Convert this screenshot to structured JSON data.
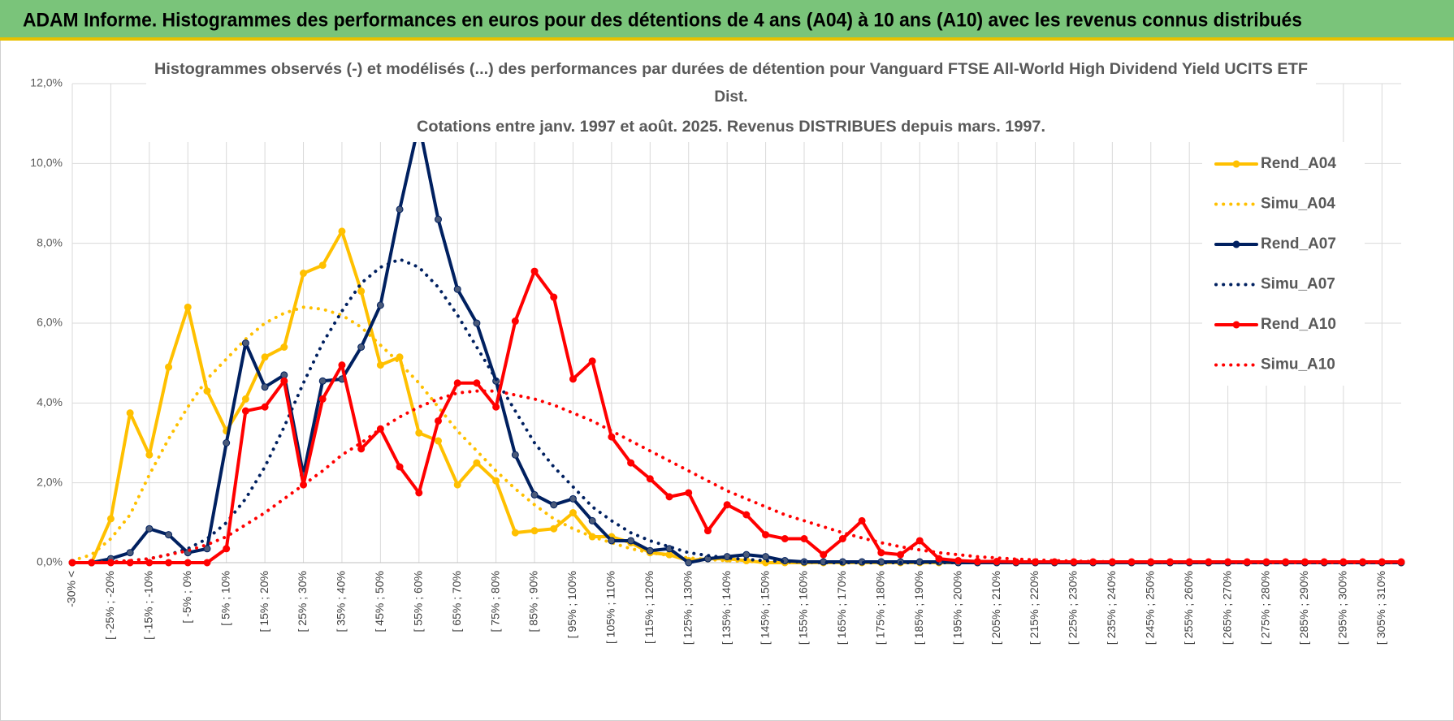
{
  "header": {
    "title": "ADAM Informe. Histogrammes des performances en euros pour des détentions de 4 ans (A04) à 10 ans (A10) avec les revenus connus distribués"
  },
  "chart_data": {
    "type": "line",
    "title": [
      "Histogrammes observés (-) et modélisés (...) des performances par durées de détention pour Vanguard FTSE All-World High Dividend Yield UCITS ETF",
      "Dist."
    ],
    "subtitle": "Cotations entre janv. 1997 et août. 2025. Revenus DISTRIBUES depuis mars. 1997.",
    "categories": [
      "-30% <",
      null,
      "[ -25% ; -20%",
      null,
      "[ -15% ; -10%",
      null,
      "[ -5% ; 0%",
      null,
      "[ 5% ; 10%",
      null,
      "[ 15% ; 20%",
      null,
      "[ 25% ; 30%",
      null,
      "[ 35% ; 40%",
      null,
      "[ 45% ; 50%",
      null,
      "[ 55% ; 60%",
      null,
      "[ 65% ; 70%",
      null,
      "[ 75% ; 80%",
      null,
      "[ 85% ; 90%",
      null,
      "[ 95% ; 100%",
      null,
      "[ 105% ; 110%",
      null,
      "[ 115% ; 120%",
      null,
      "[ 125% ; 130%",
      null,
      "[ 135% ; 140%",
      null,
      "[ 145% ; 150%",
      null,
      "[ 155% ; 160%",
      null,
      "[ 165% ; 170%",
      null,
      "[ 175% ; 180%",
      null,
      "[ 185% ; 190%",
      null,
      "[ 195% ; 200%",
      null,
      "[ 205% ; 210%",
      null,
      "[ 215% ; 220%",
      null,
      "[ 225% ; 230%",
      null,
      "[ 235% ; 240%",
      null,
      "[ 245% ; 250%",
      null,
      "[ 255% ; 260%",
      null,
      "[ 265% ; 270%",
      null,
      "[ 275% ; 280%",
      null,
      "[ 285% ; 290%",
      null,
      "[ 295% ; 300%",
      null,
      "[ 305% ; 310%",
      null
    ],
    "series": [
      {
        "name": "Rend_A04",
        "color": "#ffc000",
        "dashed": false,
        "markers": true,
        "values": [
          0,
          0,
          1.1,
          3.75,
          2.7,
          4.9,
          6.4,
          4.3,
          3.3,
          4.1,
          5.15,
          5.4,
          7.25,
          7.45,
          8.3,
          6.8,
          4.95,
          5.15,
          3.25,
          3.05,
          1.95,
          2.5,
          2.05,
          0.75,
          0.8,
          0.85,
          1.25,
          0.65,
          0.65,
          0.5,
          0.25,
          0.2,
          0.05,
          0.1,
          0.1,
          0.05,
          0,
          0,
          0,
          0,
          0,
          0,
          0,
          0,
          0,
          0,
          0,
          0,
          0,
          0,
          0,
          0,
          0,
          0,
          0,
          0,
          0,
          0,
          0,
          0,
          0,
          0,
          0,
          0,
          0,
          0,
          0,
          0,
          0,
          0
        ]
      },
      {
        "name": "Simu_A04",
        "color": "#ffc000",
        "dashed": true,
        "markers": false,
        "values": [
          0.05,
          0.2,
          0.6,
          1.2,
          2.2,
          3.1,
          3.9,
          4.6,
          5.1,
          5.6,
          6.0,
          6.25,
          6.4,
          6.35,
          6.2,
          5.9,
          5.45,
          5.0,
          4.5,
          3.9,
          3.3,
          2.8,
          2.3,
          1.85,
          1.45,
          1.1,
          0.85,
          0.65,
          0.5,
          0.35,
          0.25,
          0.18,
          0.12,
          0.08,
          0.05,
          0.03,
          0.02,
          0.01,
          0,
          0,
          0,
          0,
          0,
          0,
          0,
          0,
          0,
          0,
          0,
          0,
          0,
          0,
          0,
          0,
          0,
          0,
          0,
          0,
          0,
          0,
          0,
          0,
          0,
          0,
          0,
          0,
          0,
          0,
          0,
          0
        ]
      },
      {
        "name": "Rend_A07",
        "color": "#002060",
        "dashed": false,
        "markers": true,
        "values": [
          0,
          0,
          0.1,
          0.25,
          0.85,
          0.7,
          0.25,
          0.35,
          3.0,
          5.5,
          4.4,
          4.7,
          2.2,
          4.55,
          4.6,
          5.4,
          6.45,
          8.85,
          11.0,
          8.6,
          6.85,
          6.0,
          4.55,
          2.7,
          1.7,
          1.45,
          1.6,
          1.05,
          0.55,
          0.55,
          0.3,
          0.35,
          0.0,
          0.1,
          0.15,
          0.2,
          0.15,
          0.05,
          0.02,
          0.02,
          0.02,
          0.02,
          0.02,
          0.02,
          0.02,
          0.02,
          0,
          0,
          0,
          0,
          0,
          0,
          0,
          0,
          0,
          0,
          0,
          0,
          0,
          0,
          0,
          0,
          0,
          0,
          0,
          0,
          0,
          0,
          0,
          0
        ]
      },
      {
        "name": "Simu_A07",
        "color": "#002060",
        "dashed": true,
        "markers": false,
        "values": [
          0,
          0,
          0.02,
          0.05,
          0.1,
          0.2,
          0.35,
          0.6,
          1.0,
          1.6,
          2.4,
          3.4,
          4.5,
          5.5,
          6.3,
          7.0,
          7.4,
          7.6,
          7.4,
          6.9,
          6.2,
          5.4,
          4.6,
          3.8,
          3.0,
          2.4,
          1.9,
          1.4,
          1.05,
          0.75,
          0.55,
          0.4,
          0.25,
          0.18,
          0.12,
          0.08,
          0.05,
          0.03,
          0.02,
          0,
          0,
          0,
          0,
          0,
          0,
          0,
          0,
          0,
          0,
          0,
          0,
          0,
          0,
          0,
          0,
          0,
          0,
          0,
          0,
          0,
          0,
          0,
          0,
          0,
          0,
          0,
          0,
          0,
          0,
          0
        ]
      },
      {
        "name": "Rend_A10",
        "color": "#ff0000",
        "dashed": false,
        "markers": true,
        "values": [
          0,
          0,
          0,
          0,
          0,
          0,
          0,
          0,
          0.35,
          3.8,
          3.9,
          4.55,
          1.95,
          4.1,
          4.95,
          2.85,
          3.35,
          2.4,
          1.75,
          3.55,
          4.5,
          4.5,
          3.9,
          6.05,
          7.3,
          6.65,
          4.6,
          5.05,
          3.15,
          2.5,
          2.1,
          1.65,
          1.75,
          0.8,
          1.45,
          1.2,
          0.7,
          0.6,
          0.6,
          0.2,
          0.6,
          1.05,
          0.25,
          0.2,
          0.55,
          0.1,
          0.05,
          0.03,
          0.03,
          0.02,
          0.02,
          0.02,
          0.02,
          0.02,
          0.02,
          0.02,
          0.02,
          0.02,
          0.02,
          0.02,
          0.02,
          0.02,
          0.02,
          0.02,
          0.02,
          0.02,
          0.02,
          0.02,
          0.02,
          0.02
        ]
      },
      {
        "name": "Simu_A10",
        "color": "#ff0000",
        "dashed": true,
        "markers": false,
        "values": [
          0,
          0,
          0.02,
          0.05,
          0.1,
          0.2,
          0.3,
          0.45,
          0.65,
          0.95,
          1.25,
          1.6,
          1.95,
          2.3,
          2.7,
          3.0,
          3.35,
          3.65,
          3.9,
          4.1,
          4.25,
          4.3,
          4.3,
          4.2,
          4.1,
          3.95,
          3.75,
          3.55,
          3.3,
          3.05,
          2.8,
          2.55,
          2.3,
          2.05,
          1.8,
          1.6,
          1.4,
          1.2,
          1.05,
          0.9,
          0.75,
          0.62,
          0.5,
          0.4,
          0.32,
          0.25,
          0.2,
          0.15,
          0.12,
          0.09,
          0.07,
          0.05,
          0.04,
          0.03,
          0.02,
          0.02,
          0.01,
          0.01,
          0.01,
          0.01,
          0.01,
          0,
          0,
          0,
          0,
          0,
          0,
          0,
          0,
          0
        ]
      }
    ],
    "ylim": [
      0,
      12
    ],
    "yticks": [
      {
        "value": 0,
        "label": "0,0%"
      },
      {
        "value": 2,
        "label": "2,0%"
      },
      {
        "value": 4,
        "label": "4,0%"
      },
      {
        "value": 6,
        "label": "6,0%"
      },
      {
        "value": 8,
        "label": "8,0%"
      },
      {
        "value": 10,
        "label": "10,0%"
      },
      {
        "value": 12,
        "label": "12,0%"
      }
    ],
    "grid": true,
    "legend": "right"
  }
}
